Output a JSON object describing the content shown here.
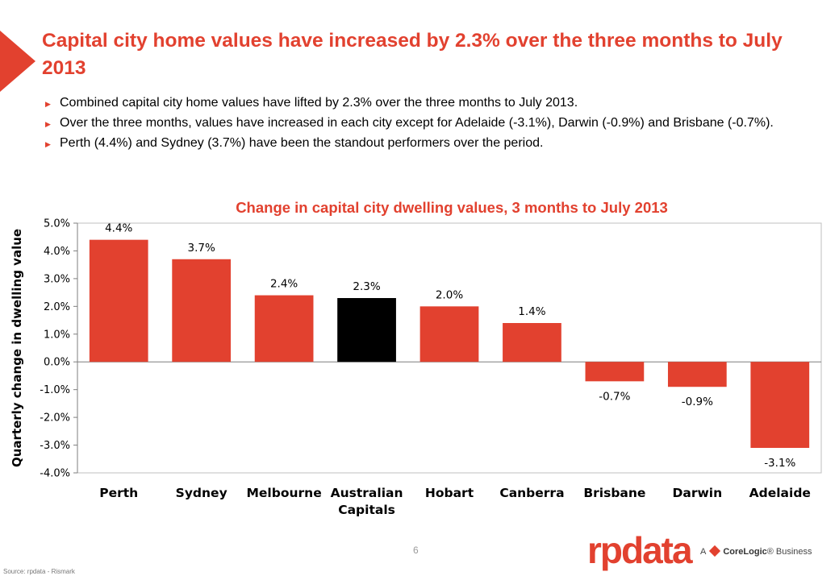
{
  "slide": {
    "title": "Capital city home values have increased by 2.3% over the three months to July 2013",
    "bullets": [
      "Combined capital city home values have lifted by 2.3% over the three months to July 2013.",
      "Over the three months, values have increased in each city except for Adelaide (-3.1%), Darwin (-0.9%) and Brisbane (-0.7%).",
      "Perth (4.4%) and Sydney (3.7%) have been the standout performers over the period."
    ],
    "page_number": "6",
    "source": "Source: rpdata - Rismark"
  },
  "brand": {
    "logo_text": "rpdata",
    "tag_prefix": "A",
    "tag_company": "CoreLogic",
    "tag_suffix": "® Business"
  },
  "colors": {
    "accent": "#e2412f",
    "bar_default": "#e2412f",
    "bar_highlight": "#000000"
  },
  "chart_data": {
    "type": "bar",
    "title": "Change in capital city dwelling values, 3 months to July 2013",
    "ylabel": "Quarterly change in dwelling value",
    "xlabel": "",
    "categories": [
      "Perth",
      "Sydney",
      "Melbourne",
      "Australian Capitals",
      "Hobart",
      "Canberra",
      "Brisbane",
      "Darwin",
      "Adelaide"
    ],
    "values": [
      4.4,
      3.7,
      2.4,
      2.3,
      2.0,
      1.4,
      -0.7,
      -0.9,
      -3.1
    ],
    "data_labels": [
      "4.4%",
      "3.7%",
      "2.4%",
      "2.3%",
      "2.0%",
      "1.4%",
      "-0.7%",
      "-0.9%",
      "-3.1%"
    ],
    "highlight_index": 3,
    "ylim": [
      -4.0,
      5.0
    ],
    "yticks": [
      5.0,
      4.0,
      3.0,
      2.0,
      1.0,
      0.0,
      -1.0,
      -2.0,
      -3.0,
      -4.0
    ],
    "ytick_labels": [
      "5.0%",
      "4.0%",
      "3.0%",
      "2.0%",
      "1.0%",
      "0.0%",
      "-1.0%",
      "-2.0%",
      "-3.0%",
      "-4.0%"
    ],
    "grid": false,
    "legend": "none"
  }
}
